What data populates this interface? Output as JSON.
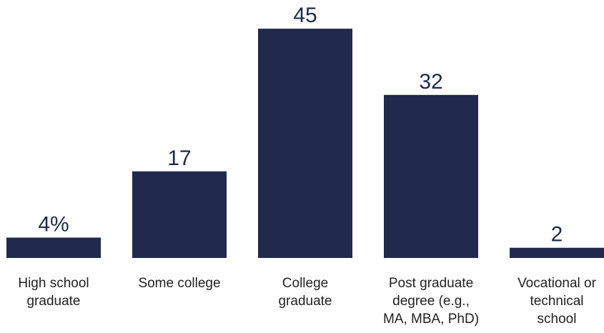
{
  "chart_data": {
    "type": "bar",
    "categories": [
      [
        "High school",
        "graduate"
      ],
      [
        "Some college"
      ],
      [
        "College",
        "graduate"
      ],
      [
        "Post graduate",
        "degree (e.g.,",
        "MA, MBA, PhD)"
      ],
      [
        "Vocational or",
        "technical",
        "school"
      ]
    ],
    "values": [
      4,
      17,
      45,
      32,
      2
    ],
    "value_labels": [
      "4%",
      "17",
      "45",
      "32",
      "2"
    ],
    "title": "",
    "xlabel": "",
    "ylabel": "",
    "ylim": [
      0,
      45
    ],
    "grid": false,
    "legend": "none",
    "bar_color": "#212a4d"
  }
}
